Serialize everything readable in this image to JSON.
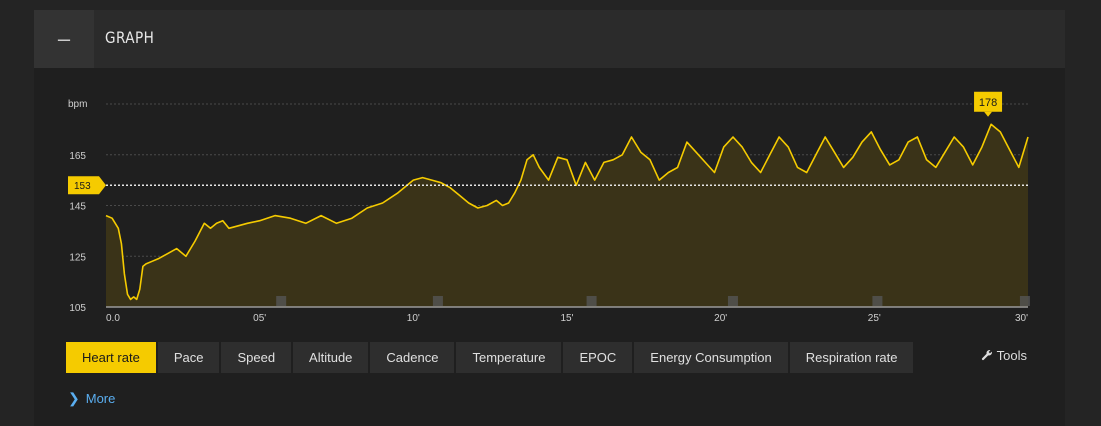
{
  "panel": {
    "title": "GRAPH",
    "collapse_symbol": "–"
  },
  "tabs": [
    {
      "label": "Heart rate",
      "active": true
    },
    {
      "label": "Pace",
      "active": false
    },
    {
      "label": "Speed",
      "active": false
    },
    {
      "label": "Altitude",
      "active": false
    },
    {
      "label": "Cadence",
      "active": false
    },
    {
      "label": "Temperature",
      "active": false
    },
    {
      "label": "EPOC",
      "active": false
    },
    {
      "label": "Energy Consumption",
      "active": false
    },
    {
      "label": "Respiration rate",
      "active": false
    }
  ],
  "tools": {
    "label": "Tools",
    "icon": "wrench-icon"
  },
  "more": {
    "label": "More",
    "icon": "chevron-right-icon"
  },
  "colors": {
    "accent": "#f5cb00",
    "fill": "#3a3318",
    "grid": "#4a4a4a",
    "panel": "#1f1f1f"
  },
  "chart_data": {
    "type": "area",
    "title": "",
    "ylabel": "bpm",
    "xlabel": "",
    "ylim": [
      105,
      185
    ],
    "xlim": [
      0,
      30
    ],
    "yticks": [
      105,
      125,
      145,
      165
    ],
    "xticks": [
      {
        "v": 0,
        "label": "0.0"
      },
      {
        "v": 5,
        "label": "05'"
      },
      {
        "v": 10,
        "label": "10'"
      },
      {
        "v": 15,
        "label": "15'"
      },
      {
        "v": 20,
        "label": "20'"
      },
      {
        "v": 25,
        "label": "25'"
      },
      {
        "v": 30,
        "label": "30'"
      }
    ],
    "average": {
      "value": 153,
      "label": "153"
    },
    "max": {
      "x": 28.7,
      "value": 178,
      "label": "178"
    },
    "lap_markers": [
      5.7,
      10.8,
      15.8,
      20.4,
      25.1,
      29.9
    ],
    "series": [
      {
        "x": [
          0,
          0.2,
          0.4,
          0.5,
          0.6,
          0.7,
          0.8,
          0.9,
          1.0,
          1.1,
          1.2,
          1.3,
          1.5,
          1.7,
          2.0,
          2.3,
          2.6,
          2.9,
          3.2,
          3.4,
          3.6,
          3.8,
          4.0,
          4.3,
          4.6,
          5.0,
          5.5,
          6.0,
          6.5,
          7.0,
          7.5,
          8.0,
          8.5,
          9.0,
          9.5,
          10.0,
          10.3,
          10.6,
          10.9,
          11.2,
          11.5,
          11.8,
          12.1,
          12.4,
          12.7,
          12.9,
          13.1,
          13.3,
          13.5,
          13.7,
          13.9,
          14.1,
          14.4,
          14.7,
          15.0,
          15.3,
          15.6,
          15.9,
          16.2,
          16.5,
          16.8,
          17.1,
          17.4,
          17.7,
          18.0,
          18.3,
          18.6,
          18.9,
          19.2,
          19.5,
          19.8,
          20.1,
          20.4,
          20.7,
          21.0,
          21.3,
          21.6,
          21.9,
          22.2,
          22.5,
          22.8,
          23.1,
          23.4,
          23.7,
          24.0,
          24.3,
          24.6,
          24.9,
          25.2,
          25.5,
          25.8,
          26.1,
          26.4,
          26.7,
          27.0,
          27.3,
          27.6,
          27.9,
          28.2,
          28.5,
          28.8,
          29.1,
          29.4,
          29.7,
          30.0
        ],
        "values": [
          141,
          140,
          136,
          130,
          118,
          110,
          108,
          109,
          108,
          112,
          121,
          122,
          123,
          124,
          126,
          128,
          125,
          131,
          138,
          136,
          138,
          139,
          136,
          137,
          138,
          139,
          141,
          140,
          138,
          141,
          138,
          140,
          144,
          146,
          150,
          155,
          156,
          155,
          154,
          152,
          149,
          146,
          144,
          145,
          147,
          145,
          146,
          150,
          155,
          163,
          165,
          160,
          155,
          164,
          163,
          153,
          162,
          155,
          162,
          163,
          165,
          172,
          166,
          163,
          155,
          158,
          160,
          170,
          166,
          162,
          158,
          168,
          172,
          168,
          162,
          158,
          165,
          172,
          168,
          160,
          158,
          165,
          172,
          166,
          160,
          164,
          170,
          174,
          167,
          161,
          163,
          170,
          172,
          163,
          160,
          166,
          172,
          168,
          161,
          168,
          177,
          174,
          167,
          160,
          172
        ]
      }
    ]
  }
}
